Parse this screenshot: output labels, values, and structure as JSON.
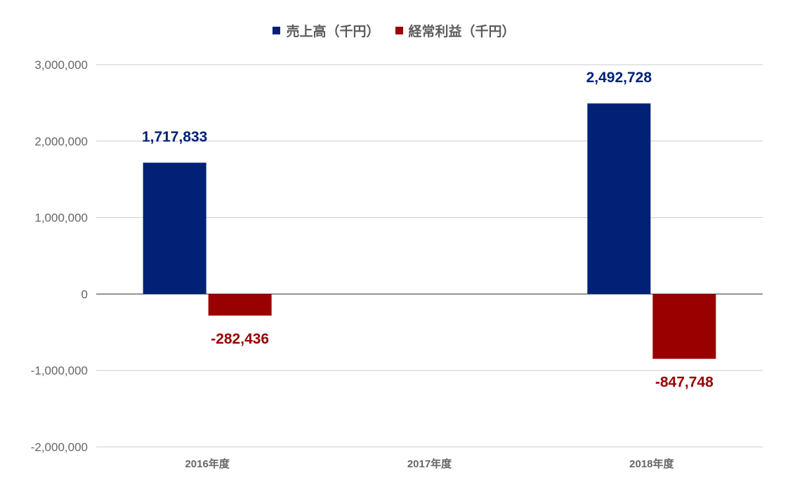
{
  "chart_data": {
    "type": "bar",
    "categories": [
      "2016年度",
      "2017年度",
      "2018年度"
    ],
    "series": [
      {
        "name": "売上高（千円）",
        "color": "#002176",
        "values": [
          1717833,
          null,
          2492728
        ],
        "labels": [
          "1,717,833",
          "",
          "2,492,728"
        ]
      },
      {
        "name": "経常利益（千円）",
        "color": "#990000",
        "values": [
          -282436,
          null,
          -847748
        ],
        "labels": [
          "-282,436",
          "",
          "-847,748"
        ]
      }
    ],
    "ylim": [
      -2000000,
      3000000
    ],
    "yticks": [
      3000000,
      2000000,
      1000000,
      0,
      -1000000,
      -2000000
    ],
    "ytick_labels": [
      "3,000,000",
      "2,000,000",
      "1,000,000",
      "0",
      "-1,000,000",
      "-2,000,000"
    ],
    "legend_position": "top-center",
    "grid": true
  }
}
